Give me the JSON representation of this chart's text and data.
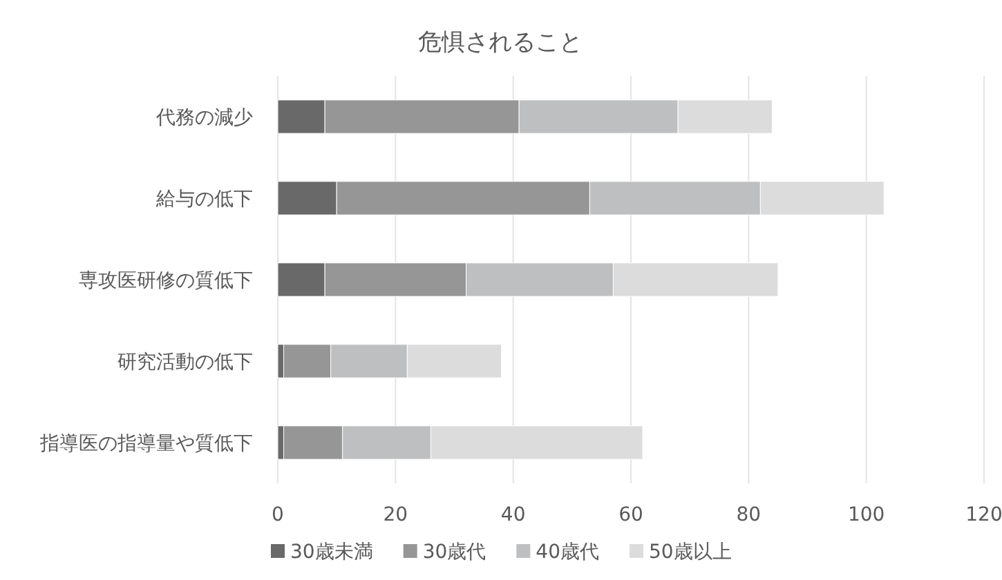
{
  "chart_data": {
    "type": "bar",
    "orientation": "horizontal",
    "stacked": true,
    "title": "危惧されること",
    "categories": [
      "代務の減少",
      "給与の低下",
      "専攻医研修の質低下",
      "研究活動の低下",
      "指導医の指導量や質低下"
    ],
    "series": [
      {
        "name": "30歳未満",
        "color": "#696969",
        "values": [
          8,
          10,
          8,
          1,
          1
        ]
      },
      {
        "name": "30歳代",
        "color": "#969696",
        "values": [
          33,
          43,
          24,
          8,
          10
        ]
      },
      {
        "name": "40歳代",
        "color": "#bebfc0",
        "values": [
          27,
          29,
          25,
          13,
          15
        ]
      },
      {
        "name": "50歳以上",
        "color": "#dcdcdc",
        "values": [
          16,
          21,
          28,
          16,
          36
        ]
      }
    ],
    "xlim": [
      0,
      120
    ],
    "xticks": [
      0,
      20,
      40,
      60,
      80,
      100,
      120
    ],
    "grid": "x",
    "legend": "bottom"
  }
}
